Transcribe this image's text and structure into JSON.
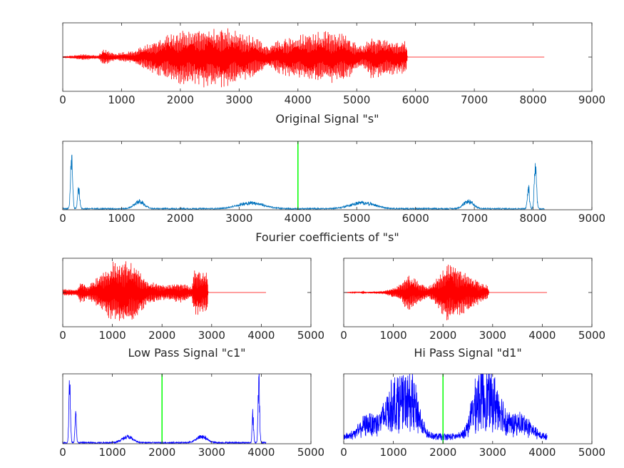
{
  "chart_data": [
    {
      "id": "original",
      "type": "line",
      "xlabel": "Original Signal \"s\"",
      "xlim": [
        0,
        9000
      ],
      "xticks": [
        0,
        1000,
        2000,
        3000,
        4000,
        5000,
        6000,
        7000,
        8000,
        9000
      ],
      "ylim": [
        -1,
        1
      ],
      "color": "#ff0000",
      "signal_length": 8192,
      "envelope": [
        {
          "x": 0,
          "a": 0.02
        },
        {
          "x": 150,
          "a": 0.05
        },
        {
          "x": 350,
          "a": 0.09
        },
        {
          "x": 600,
          "a": 0.05
        },
        {
          "x": 700,
          "a": 0.25
        },
        {
          "x": 900,
          "a": 0.1
        },
        {
          "x": 1200,
          "a": 0.2
        },
        {
          "x": 1600,
          "a": 0.55
        },
        {
          "x": 2000,
          "a": 0.8
        },
        {
          "x": 2400,
          "a": 0.93
        },
        {
          "x": 2800,
          "a": 0.88
        },
        {
          "x": 3200,
          "a": 0.65
        },
        {
          "x": 3500,
          "a": 0.35
        },
        {
          "x": 3700,
          "a": 0.55
        },
        {
          "x": 4000,
          "a": 0.65
        },
        {
          "x": 4500,
          "a": 0.78
        },
        {
          "x": 4800,
          "a": 0.7
        },
        {
          "x": 5100,
          "a": 0.3
        },
        {
          "x": 5250,
          "a": 0.65
        },
        {
          "x": 5500,
          "a": 0.55
        },
        {
          "x": 5850,
          "a": 0.5
        },
        {
          "x": 5860,
          "a": 0.0
        },
        {
          "x": 8192,
          "a": 0.0
        }
      ]
    },
    {
      "id": "fourier-s",
      "type": "line",
      "xlabel": "Fourier coefficients of \"s\"",
      "xlim": [
        0,
        9000
      ],
      "xticks": [
        0,
        1000,
        2000,
        3000,
        4000,
        5000,
        6000,
        7000,
        8000,
        9000
      ],
      "ylim": [
        0,
        1
      ],
      "color": "#0072bd",
      "marker_x": 4000,
      "marker_color": "#00ff00",
      "signal_length": 8192,
      "peaks": [
        {
          "x": 150,
          "h": 0.8,
          "w": 25
        },
        {
          "x": 270,
          "h": 0.35,
          "w": 25
        },
        {
          "x": 1300,
          "h": 0.12,
          "w": 120
        },
        {
          "x": 3200,
          "h": 0.1,
          "w": 300
        },
        {
          "x": 5100,
          "h": 0.1,
          "w": 300
        },
        {
          "x": 6900,
          "h": 0.12,
          "w": 120
        },
        {
          "x": 7920,
          "h": 0.35,
          "w": 25
        },
        {
          "x": 8040,
          "h": 0.8,
          "w": 25
        }
      ]
    },
    {
      "id": "low-pass",
      "type": "line",
      "xlabel": "Low Pass Signal \"c1\"",
      "xlim": [
        0,
        5000
      ],
      "xticks": [
        0,
        1000,
        2000,
        3000,
        4000,
        5000
      ],
      "ylim": [
        -1,
        1
      ],
      "color": "#ff0000",
      "signal_length": 4096,
      "envelope": [
        {
          "x": 0,
          "a": 0.1
        },
        {
          "x": 300,
          "a": 0.1
        },
        {
          "x": 360,
          "a": 0.35
        },
        {
          "x": 500,
          "a": 0.2
        },
        {
          "x": 700,
          "a": 0.45
        },
        {
          "x": 1000,
          "a": 0.9
        },
        {
          "x": 1200,
          "a": 1.0
        },
        {
          "x": 1450,
          "a": 0.85
        },
        {
          "x": 1700,
          "a": 0.35
        },
        {
          "x": 2000,
          "a": 0.22
        },
        {
          "x": 2400,
          "a": 0.3
        },
        {
          "x": 2600,
          "a": 0.15
        },
        {
          "x": 2650,
          "a": 0.7
        },
        {
          "x": 2920,
          "a": 0.6
        },
        {
          "x": 2930,
          "a": 0.0
        },
        {
          "x": 4096,
          "a": 0.0
        }
      ]
    },
    {
      "id": "hi-pass",
      "type": "line",
      "xlabel": "Hi Pass Signal \"d1\"",
      "xlim": [
        0,
        5000
      ],
      "xticks": [
        0,
        1000,
        2000,
        3000,
        4000,
        5000
      ],
      "ylim": [
        -1,
        1
      ],
      "color": "#ff0000",
      "signal_length": 4096,
      "envelope": [
        {
          "x": 0,
          "a": 0.0
        },
        {
          "x": 350,
          "a": 0.02
        },
        {
          "x": 380,
          "a": 0.06
        },
        {
          "x": 450,
          "a": 0.02
        },
        {
          "x": 800,
          "a": 0.05
        },
        {
          "x": 1100,
          "a": 0.2
        },
        {
          "x": 1300,
          "a": 0.55
        },
        {
          "x": 1500,
          "a": 0.35
        },
        {
          "x": 1700,
          "a": 0.15
        },
        {
          "x": 1850,
          "a": 0.4
        },
        {
          "x": 2100,
          "a": 0.9
        },
        {
          "x": 2350,
          "a": 0.7
        },
        {
          "x": 2600,
          "a": 0.45
        },
        {
          "x": 2900,
          "a": 0.2
        },
        {
          "x": 2930,
          "a": 0.0
        },
        {
          "x": 4096,
          "a": 0.0
        }
      ]
    },
    {
      "id": "fourier-c1",
      "type": "line",
      "xlabel": "",
      "xlim": [
        0,
        5000
      ],
      "xticks": [
        0,
        1000,
        2000,
        3000,
        4000,
        5000
      ],
      "ylim": [
        0,
        1
      ],
      "color": "#0000ff",
      "marker_x": 2000,
      "marker_color": "#00ff00",
      "signal_length": 4096,
      "peaks": [
        {
          "x": 140,
          "h": 1.0,
          "w": 22
        },
        {
          "x": 260,
          "h": 0.45,
          "w": 20
        },
        {
          "x": 1300,
          "h": 0.1,
          "w": 150
        },
        {
          "x": 2800,
          "h": 0.1,
          "w": 150
        },
        {
          "x": 3830,
          "h": 0.45,
          "w": 20
        },
        {
          "x": 3950,
          "h": 1.0,
          "w": 22
        }
      ]
    },
    {
      "id": "fourier-d1",
      "type": "line",
      "xlabel": "",
      "xlim": [
        0,
        5000
      ],
      "xticks": [
        0,
        1000,
        2000,
        3000,
        4000,
        5000
      ],
      "ylim": [
        0,
        1
      ],
      "color": "#0000ff",
      "marker_x": 2000,
      "marker_color": "#00ff00",
      "signal_length": 4096,
      "peaks": [
        {
          "x": 500,
          "h": 0.2,
          "w": 250
        },
        {
          "x": 1050,
          "h": 0.55,
          "w": 300
        },
        {
          "x": 1400,
          "h": 0.4,
          "w": 200
        },
        {
          "x": 2700,
          "h": 0.4,
          "w": 200
        },
        {
          "x": 3000,
          "h": 0.55,
          "w": 300
        },
        {
          "x": 3600,
          "h": 0.2,
          "w": 250
        }
      ]
    }
  ]
}
